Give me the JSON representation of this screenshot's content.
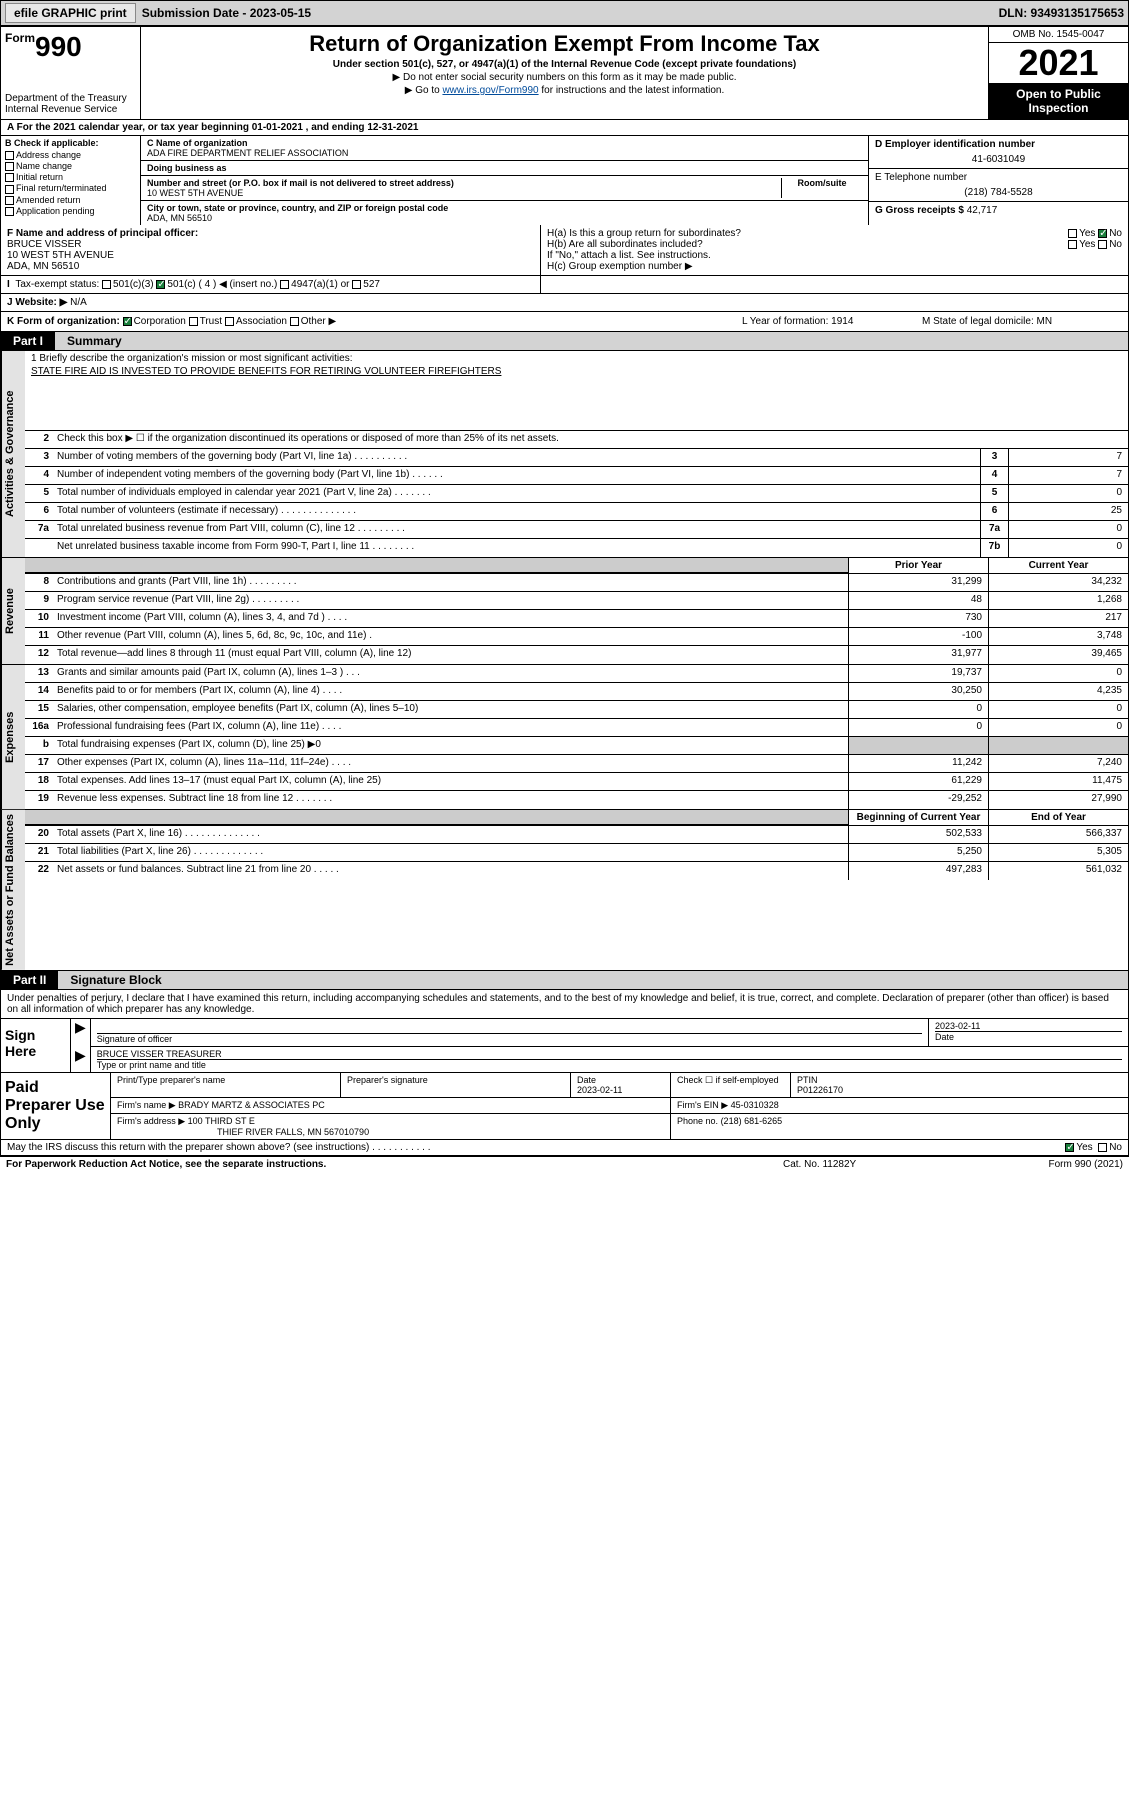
{
  "topbar": {
    "efile": "efile GRAPHIC print",
    "subdate_label": "Submission Date - 2023-05-15",
    "dln": "DLN: 93493135175653"
  },
  "header": {
    "form_small": "Form",
    "form_big": "990",
    "dept": "Department of the Treasury",
    "irs": "Internal Revenue Service",
    "title": "Return of Organization Exempt From Income Tax",
    "sub": "Under section 501(c), 527, or 4947(a)(1) of the Internal Revenue Code (except private foundations)",
    "note1": "▶ Do not enter social security numbers on this form as it may be made public.",
    "note2_pre": "▶ Go to ",
    "note2_link": "www.irs.gov/Form990",
    "note2_post": " for instructions and the latest information.",
    "omb": "OMB No. 1545-0047",
    "year": "2021",
    "otp": "Open to Public Inspection"
  },
  "row_a": "A For the 2021 calendar year, or tax year beginning 01-01-2021   , and ending 12-31-2021",
  "col_b": {
    "label": "B Check if applicable:",
    "items": [
      "Address change",
      "Name change",
      "Initial return",
      "Final return/terminated",
      "Amended return",
      "Application pending"
    ]
  },
  "col_c": {
    "name_lbl": "C Name of organization",
    "name": "ADA FIRE DEPARTMENT RELIEF ASSOCIATION",
    "dba_lbl": "Doing business as",
    "dba": "",
    "addr_lbl": "Number and street (or P.O. box if mail is not delivered to street address)",
    "room_lbl": "Room/suite",
    "addr": "10 WEST 5TH AVENUE",
    "city_lbl": "City or town, state or province, country, and ZIP or foreign postal code",
    "city": "ADA, MN  56510"
  },
  "col_d": {
    "ein_lbl": "D Employer identification number",
    "ein": "41-6031049",
    "tel_lbl": "E Telephone number",
    "tel": "(218) 784-5528",
    "gross_lbl": "G Gross receipts $ ",
    "gross": "42,717"
  },
  "row_f": {
    "lbl": "F Name and address of principal officer:",
    "name": "BRUCE VISSER",
    "addr1": "10 WEST 5TH AVENUE",
    "addr2": "ADA, MN  56510"
  },
  "row_h": {
    "ha": "H(a)  Is this a group return for subordinates?",
    "yes": "Yes",
    "no": "No",
    "hb": "H(b)  Are all subordinates included?",
    "hb_note": "If \"No,\" attach a list. See instructions.",
    "hc": "H(c)  Group exemption number ▶"
  },
  "row_i": {
    "lbl": "Tax-exempt status:",
    "o1": "501(c)(3)",
    "o2": "501(c) ( 4 ) ◀ (insert no.)",
    "o3": "4947(a)(1) or",
    "o4": "527"
  },
  "row_j": {
    "lbl": "J   Website: ▶",
    "val": "N/A"
  },
  "row_k": {
    "lbl": "K Form of organization:",
    "o1": "Corporation",
    "o2": "Trust",
    "o3": "Association",
    "o4": "Other ▶",
    "l": "L Year of formation: 1914",
    "m": "M State of legal domicile: MN"
  },
  "part1": {
    "lbl": "Part I",
    "title": "Summary"
  },
  "mission": {
    "lbl": "1   Briefly describe the organization's mission or most significant activities:",
    "text": "STATE FIRE AID IS INVESTED TO PROVIDE BENEFITS FOR RETIRING VOLUNTEER FIREFIGHTERS"
  },
  "gov_lines": [
    {
      "n": "2",
      "d": "Check this box ▶ ☐  if the organization discontinued its operations or disposed of more than 25% of its net assets.",
      "box": "",
      "v": ""
    },
    {
      "n": "3",
      "d": "Number of voting members of the governing body (Part VI, line 1a)   .    .    .    .    .    .    .    .    .    .",
      "box": "3",
      "v": "7"
    },
    {
      "n": "4",
      "d": "Number of independent voting members of the governing body (Part VI, line 1b)   .    .    .    .    .    .",
      "box": "4",
      "v": "7"
    },
    {
      "n": "5",
      "d": "Total number of individuals employed in calendar year 2021 (Part V, line 2a)   .    .    .    .    .    .    .",
      "box": "5",
      "v": "0"
    },
    {
      "n": "6",
      "d": "Total number of volunteers (estimate if necessary)   .    .    .    .    .    .    .    .    .    .    .    .    .    .",
      "box": "6",
      "v": "25"
    },
    {
      "n": "7a",
      "d": "Total unrelated business revenue from Part VIII, column (C), line 12   .    .    .    .    .    .    .    .    .",
      "box": "7a",
      "v": "0"
    },
    {
      "n": "",
      "d": "Net unrelated business taxable income from Form 990-T, Part I, line 11   .    .    .    .    .    .    .    .",
      "box": "7b",
      "v": "0"
    }
  ],
  "hdr_prior": "Prior Year",
  "hdr_current": "Current Year",
  "rev_lines": [
    {
      "n": "8",
      "d": "Contributions and grants (Part VIII, line 1h)   .    .    .    .    .    .    .    .    .",
      "p": "31,299",
      "c": "34,232"
    },
    {
      "n": "9",
      "d": "Program service revenue (Part VIII, line 2g)   .    .    .    .    .    .    .    .    .",
      "p": "48",
      "c": "1,268"
    },
    {
      "n": "10",
      "d": "Investment income (Part VIII, column (A), lines 3, 4, and 7d )   .    .    .    .",
      "p": "730",
      "c": "217"
    },
    {
      "n": "11",
      "d": "Other revenue (Part VIII, column (A), lines 5, 6d, 8c, 9c, 10c, and 11e)   .",
      "p": "-100",
      "c": "3,748"
    },
    {
      "n": "12",
      "d": "Total revenue—add lines 8 through 11 (must equal Part VIII, column (A), line 12)",
      "p": "31,977",
      "c": "39,465"
    }
  ],
  "exp_lines": [
    {
      "n": "13",
      "d": "Grants and similar amounts paid (Part IX, column (A), lines 1–3 )   .    .    .",
      "p": "19,737",
      "c": "0"
    },
    {
      "n": "14",
      "d": "Benefits paid to or for members (Part IX, column (A), line 4)   .    .    .    .",
      "p": "30,250",
      "c": "4,235"
    },
    {
      "n": "15",
      "d": "Salaries, other compensation, employee benefits (Part IX, column (A), lines 5–10)",
      "p": "0",
      "c": "0"
    },
    {
      "n": "16a",
      "d": "Professional fundraising fees (Part IX, column (A), line 11e)   .    .    .    .",
      "p": "0",
      "c": "0"
    },
    {
      "n": "b",
      "d": "Total fundraising expenses (Part IX, column (D), line 25) ▶0",
      "p": "",
      "c": "",
      "shade": true
    },
    {
      "n": "17",
      "d": "Other expenses (Part IX, column (A), lines 11a–11d, 11f–24e)   .    .    .    .",
      "p": "11,242",
      "c": "7,240"
    },
    {
      "n": "18",
      "d": "Total expenses. Add lines 13–17 (must equal Part IX, column (A), line 25)",
      "p": "61,229",
      "c": "11,475"
    },
    {
      "n": "19",
      "d": "Revenue less expenses. Subtract line 18 from line 12   .    .    .    .    .    .    .",
      "p": "-29,252",
      "c": "27,990"
    }
  ],
  "hdr_begin": "Beginning of Current Year",
  "hdr_end": "End of Year",
  "na_lines": [
    {
      "n": "20",
      "d": "Total assets (Part X, line 16)   .    .    .    .    .    .    .    .    .    .    .    .    .    .",
      "p": "502,533",
      "c": "566,337"
    },
    {
      "n": "21",
      "d": "Total liabilities (Part X, line 26)   .    .    .    .    .    .    .    .    .    .    .    .    .",
      "p": "5,250",
      "c": "5,305"
    },
    {
      "n": "22",
      "d": "Net assets or fund balances. Subtract line 21 from line 20   .    .    .    .    .",
      "p": "497,283",
      "c": "561,032"
    }
  ],
  "vtabs": {
    "gov": "Activities & Governance",
    "rev": "Revenue",
    "exp": "Expenses",
    "na": "Net Assets or Fund Balances"
  },
  "part2": {
    "lbl": "Part II",
    "title": "Signature Block"
  },
  "sig_decl": "Under penalties of perjury, I declare that I have examined this return, including accompanying schedules and statements, and to the best of my knowledge and belief, it is true, correct, and complete. Declaration of preparer (other than officer) is based on all information of which preparer has any knowledge.",
  "sign": {
    "here": "Sign Here",
    "sig_lbl": "Signature of officer",
    "date_lbl": "Date",
    "date": "2023-02-11",
    "name": "BRUCE VISSER  TREASURER",
    "name_lbl": "Type or print name and title"
  },
  "prep": {
    "lbl": "Paid Preparer Use Only",
    "h1": "Print/Type preparer's name",
    "h2": "Preparer's signature",
    "h3": "Date",
    "h4": "Check ☐ if self-employed",
    "h5": "PTIN",
    "date": "2023-02-11",
    "ptin": "P01226170",
    "firm_lbl": "Firm's name    ▶",
    "firm": "BRADY MARTZ & ASSOCIATES PC",
    "ein_lbl": "Firm's EIN ▶",
    "ein": "45-0310328",
    "addr_lbl": "Firm's address ▶",
    "addr1": "100 THIRD ST E",
    "addr2": "THIEF RIVER FALLS, MN  567010790",
    "phone_lbl": "Phone no.",
    "phone": "(218) 681-6265"
  },
  "discuss": {
    "q": "May the IRS discuss this return with the preparer shown above? (see instructions)   .    .    .    .    .    .    .    .    .    .    .",
    "yes": "Yes",
    "no": "No"
  },
  "footer": {
    "f1": "For Paperwork Reduction Act Notice, see the separate instructions.",
    "f2": "Cat. No. 11282Y",
    "f3": "Form 990 (2021)"
  },
  "colors": {
    "topbar_bg": "#d3d3d3",
    "black": "#000000",
    "link": "#004b9b",
    "check_green": "#1a7f3c",
    "shade": "#cccccc"
  }
}
